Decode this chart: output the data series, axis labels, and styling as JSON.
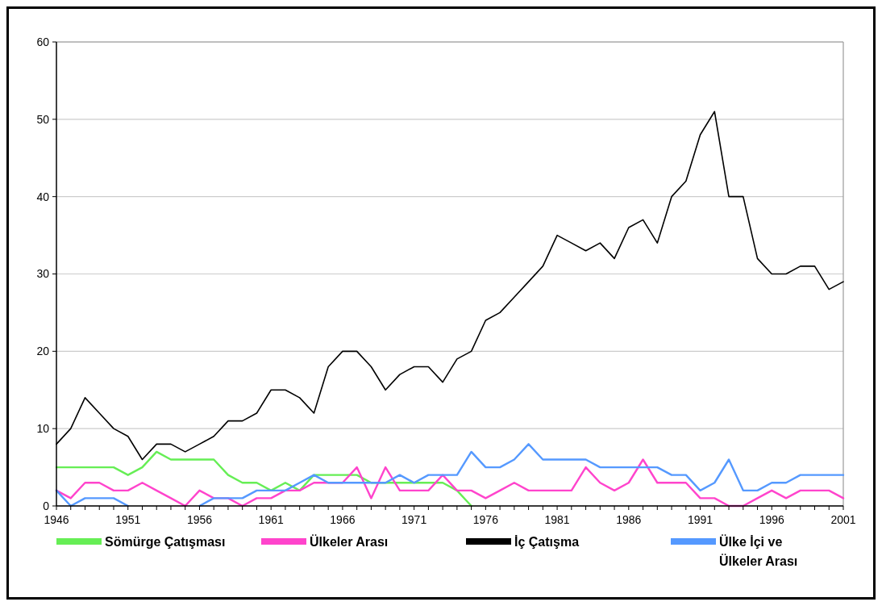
{
  "chart_data": {
    "type": "line",
    "x": [
      1946,
      1947,
      1948,
      1949,
      1950,
      1951,
      1952,
      1953,
      1954,
      1955,
      1956,
      1957,
      1958,
      1959,
      1960,
      1961,
      1962,
      1963,
      1964,
      1965,
      1966,
      1967,
      1968,
      1969,
      1970,
      1971,
      1972,
      1973,
      1974,
      1975,
      1976,
      1977,
      1978,
      1979,
      1980,
      1981,
      1982,
      1983,
      1984,
      1985,
      1986,
      1987,
      1988,
      1989,
      1990,
      1991,
      1992,
      1993,
      1994,
      1995,
      1996,
      1997,
      1998,
      1999,
      2000,
      2001
    ],
    "series": [
      {
        "name": "Sömürge Çatışması",
        "color": "#66ee55",
        "values": [
          5,
          5,
          5,
          5,
          5,
          4,
          5,
          7,
          6,
          6,
          6,
          6,
          4,
          3,
          3,
          2,
          3,
          2,
          4,
          4,
          4,
          4,
          3,
          3,
          3,
          3,
          3,
          3,
          2,
          0,
          null,
          null,
          null,
          null,
          null,
          null,
          null,
          null,
          null,
          null,
          null,
          null,
          null,
          null,
          null,
          null,
          null,
          null,
          null,
          null,
          null,
          null,
          null,
          null,
          null,
          null
        ]
      },
      {
        "name": "Ülkeler Arası",
        "color": "#ff44cc",
        "values": [
          2,
          1,
          3,
          3,
          2,
          2,
          3,
          2,
          1,
          0,
          2,
          1,
          1,
          0,
          1,
          1,
          2,
          2,
          3,
          3,
          3,
          5,
          1,
          5,
          2,
          2,
          2,
          4,
          2,
          2,
          1,
          2,
          3,
          2,
          2,
          2,
          2,
          5,
          3,
          2,
          3,
          6,
          3,
          3,
          3,
          1,
          1,
          0,
          0,
          1,
          2,
          1,
          2,
          2,
          2,
          1
        ]
      },
      {
        "name": "İç Çatışma",
        "color": "#000000",
        "values": [
          8,
          10,
          14,
          12,
          10,
          9,
          6,
          8,
          8,
          7,
          8,
          9,
          11,
          11,
          12,
          15,
          15,
          14,
          12,
          18,
          20,
          20,
          18,
          15,
          17,
          18,
          18,
          16,
          19,
          20,
          24,
          25,
          27,
          29,
          31,
          35,
          34,
          33,
          34,
          32,
          36,
          37,
          34,
          40,
          42,
          48,
          51,
          40,
          40,
          32,
          30,
          30,
          31,
          31,
          28,
          29
        ]
      },
      {
        "name": "Ülke İçi ve Ülkeler Arası",
        "color": "#5599ff",
        "values": [
          2,
          0,
          1,
          1,
          1,
          0,
          null,
          null,
          null,
          null,
          0,
          1,
          1,
          1,
          2,
          2,
          2,
          3,
          4,
          3,
          3,
          3,
          3,
          3,
          4,
          3,
          4,
          4,
          4,
          7,
          5,
          5,
          6,
          8,
          6,
          6,
          6,
          6,
          5,
          5,
          5,
          5,
          5,
          4,
          4,
          2,
          3,
          6,
          2,
          2,
          3,
          3,
          4,
          4,
          4,
          4
        ]
      }
    ],
    "xlim": [
      1946,
      2001
    ],
    "xticks": [
      1946,
      {
        "value": 1947,
        "label": null
      },
      {
        "value": 1948,
        "label": null
      },
      {
        "value": 1949,
        "label": null
      },
      {
        "value": 1950,
        "label": null
      },
      1951,
      {
        "value": 1952,
        "label": null
      },
      {
        "value": 1953,
        "label": null
      },
      {
        "value": 1954,
        "label": null
      },
      {
        "value": 1955,
        "label": null
      },
      1956,
      {
        "value": 1957,
        "label": null
      },
      {
        "value": 1958,
        "label": null
      },
      {
        "value": 1959,
        "label": null
      },
      {
        "value": 1960,
        "label": null
      },
      1961,
      {
        "value": 1962,
        "label": null
      },
      {
        "value": 1963,
        "label": null
      },
      {
        "value": 1964,
        "label": null
      },
      {
        "value": 1965,
        "label": null
      },
      1966,
      {
        "value": 1967,
        "label": null
      },
      {
        "value": 1968,
        "label": null
      },
      {
        "value": 1969,
        "label": null
      },
      {
        "value": 1970,
        "label": null
      },
      1971,
      {
        "value": 1972,
        "label": null
      },
      {
        "value": 1973,
        "label": null
      },
      {
        "value": 1974,
        "label": null
      },
      {
        "value": 1975,
        "label": null
      },
      1976,
      {
        "value": 1977,
        "label": null
      },
      {
        "value": 1978,
        "label": null
      },
      {
        "value": 1979,
        "label": null
      },
      {
        "value": 1980,
        "label": null
      },
      1981,
      {
        "value": 1982,
        "label": null
      },
      {
        "value": 1983,
        "label": null
      },
      {
        "value": 1984,
        "label": null
      },
      {
        "value": 1985,
        "label": null
      },
      1986,
      {
        "value": 1987,
        "label": null
      },
      {
        "value": 1988,
        "label": null
      },
      {
        "value": 1989,
        "label": null
      },
      {
        "value": 1990,
        "label": null
      },
      1991,
      {
        "value": 1992,
        "label": null
      },
      {
        "value": 1993,
        "label": null
      },
      {
        "value": 1994,
        "label": null
      },
      {
        "value": 1995,
        "label": null
      },
      1996,
      {
        "value": 1997,
        "label": null
      },
      {
        "value": 1998,
        "label": null
      },
      {
        "value": 1999,
        "label": null
      },
      {
        "value": 2000,
        "label": null
      },
      2001
    ],
    "ylim": [
      0,
      60
    ],
    "yticks": [
      0,
      10,
      20,
      30,
      40,
      50,
      60
    ],
    "grid": "y",
    "legend": "bottom",
    "marker": "none",
    "line_style": "solid"
  }
}
